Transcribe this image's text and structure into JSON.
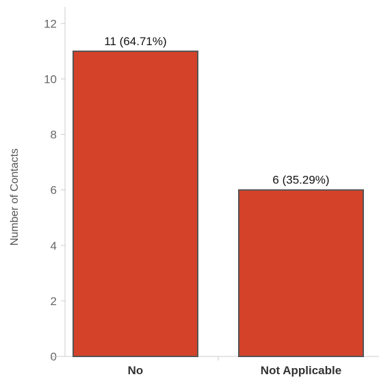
{
  "chart_data": {
    "type": "bar",
    "categories": [
      "No",
      "Not Applicable"
    ],
    "values": [
      11,
      6
    ],
    "data_labels": [
      "11 (64.71%)",
      "6 (35.29%)"
    ],
    "ylabel": "Number of Contacts",
    "xlabel": "",
    "ylim": [
      0,
      12.6
    ],
    "yticks": [
      0,
      2,
      4,
      6,
      8,
      10,
      12
    ],
    "grid": false,
    "legend": "none",
    "colors": {
      "bar": "#d44229",
      "bar_edge": "#555555",
      "axis": "#cccccc",
      "tick_text": "#666666"
    }
  }
}
